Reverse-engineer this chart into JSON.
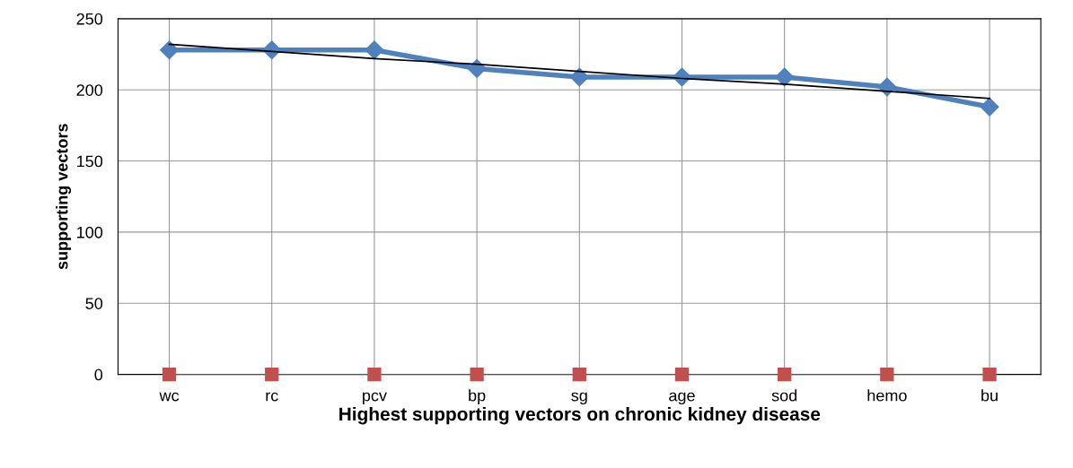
{
  "chart_data": {
    "type": "line",
    "xlabel": "Highest supporting vectors on chronic kidney disease",
    "ylabel": "supporting vectors",
    "categories": [
      "wc",
      "rc",
      "pcv",
      "bp",
      "sg",
      "age",
      "sod",
      "hemo",
      "bu"
    ],
    "series": [
      {
        "color": "#4f81bd",
        "marker": "diamond",
        "values": [
          228,
          228,
          228,
          215,
          209,
          209,
          209,
          202,
          188
        ]
      },
      {
        "color": "#c0504d",
        "marker": "square",
        "values": [
          0,
          0,
          0,
          0,
          0,
          0,
          0,
          0,
          0
        ]
      },
      {
        "color": "#000000",
        "marker": "none",
        "values": [
          232,
          227,
          222,
          218,
          213,
          208,
          204,
          199,
          194
        ]
      }
    ],
    "ylim": [
      0,
      250
    ],
    "yticks": [
      0,
      50,
      100,
      150,
      200,
      250
    ],
    "grid": true,
    "legend": false
  }
}
